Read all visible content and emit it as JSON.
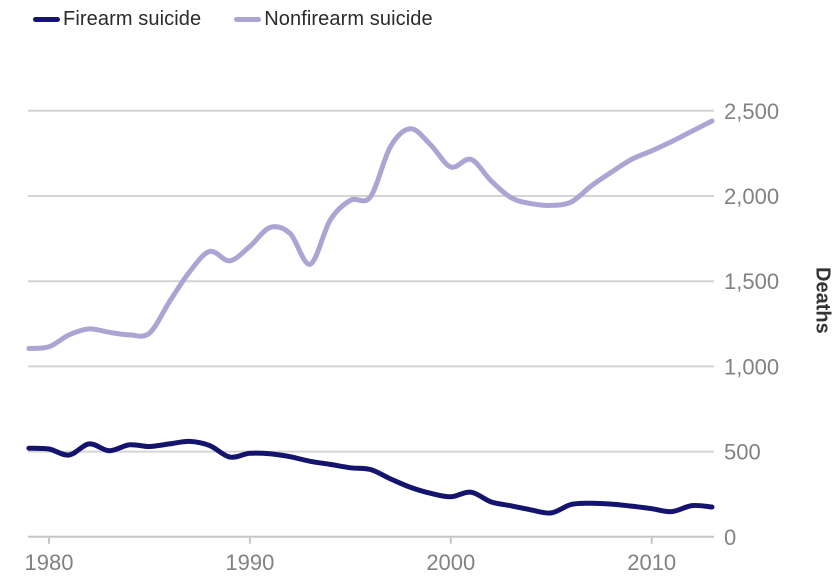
{
  "legend": [
    {
      "label": "Firearm suicide",
      "color": "#14146e"
    },
    {
      "label": "Nonfirearm suicide",
      "color": "#aba5d4"
    }
  ],
  "y_axis": {
    "label": "Deaths",
    "side": "right",
    "ticks": [
      {
        "value": 0,
        "label": "0"
      },
      {
        "value": 500,
        "label": "500"
      },
      {
        "value": 1000,
        "label": "1,000"
      },
      {
        "value": 1500,
        "label": "1,500"
      },
      {
        "value": 2000,
        "label": "2,000"
      },
      {
        "value": 2500,
        "label": "2,500"
      }
    ]
  },
  "x_axis": {
    "ticks": [
      {
        "value": 1980,
        "label": "1980"
      },
      {
        "value": 1990,
        "label": "1990"
      },
      {
        "value": 2000,
        "label": "2000"
      },
      {
        "value": 2010,
        "label": "2010"
      }
    ]
  },
  "chart_data": {
    "type": "line",
    "title": "",
    "xlabel": "",
    "ylabel": "Deaths",
    "xlim": [
      1979,
      2013.3
    ],
    "ylim": [
      0,
      2500
    ],
    "grid": "horizontal",
    "legend_position": "top-left",
    "x": [
      1979,
      1980,
      1981,
      1982,
      1983,
      1984,
      1985,
      1986,
      1987,
      1988,
      1989,
      1990,
      1991,
      1992,
      1993,
      1994,
      1995,
      1996,
      1997,
      1998,
      1999,
      2000,
      2001,
      2002,
      2003,
      2004,
      2005,
      2006,
      2007,
      2008,
      2009,
      2010,
      2011,
      2012,
      2013
    ],
    "series": [
      {
        "name": "Firearm suicide",
        "color": "#14146e",
        "values": [
          520,
          515,
          480,
          545,
          505,
          540,
          530,
          545,
          560,
          535,
          468,
          490,
          487,
          470,
          443,
          425,
          405,
          395,
          340,
          290,
          255,
          235,
          262,
          205,
          182,
          158,
          140,
          190,
          197,
          192,
          180,
          165,
          148,
          183,
          175
        ]
      },
      {
        "name": "Nonfirearm suicide",
        "color": "#aba5d4",
        "values": [
          1105,
          1115,
          1185,
          1220,
          1200,
          1185,
          1195,
          1380,
          1555,
          1675,
          1620,
          1705,
          1815,
          1780,
          1600,
          1860,
          1975,
          1995,
          2290,
          2395,
          2300,
          2170,
          2215,
          2090,
          1990,
          1955,
          1945,
          1965,
          2060,
          2140,
          2215,
          2265,
          2320,
          2380,
          2440
        ]
      }
    ]
  },
  "colors": {
    "gridline": "#d4d4d4",
    "axis_line": "#c6c6c6",
    "tick_label": "#828282",
    "axis_label": "#333333",
    "background": "#ffffff"
  }
}
